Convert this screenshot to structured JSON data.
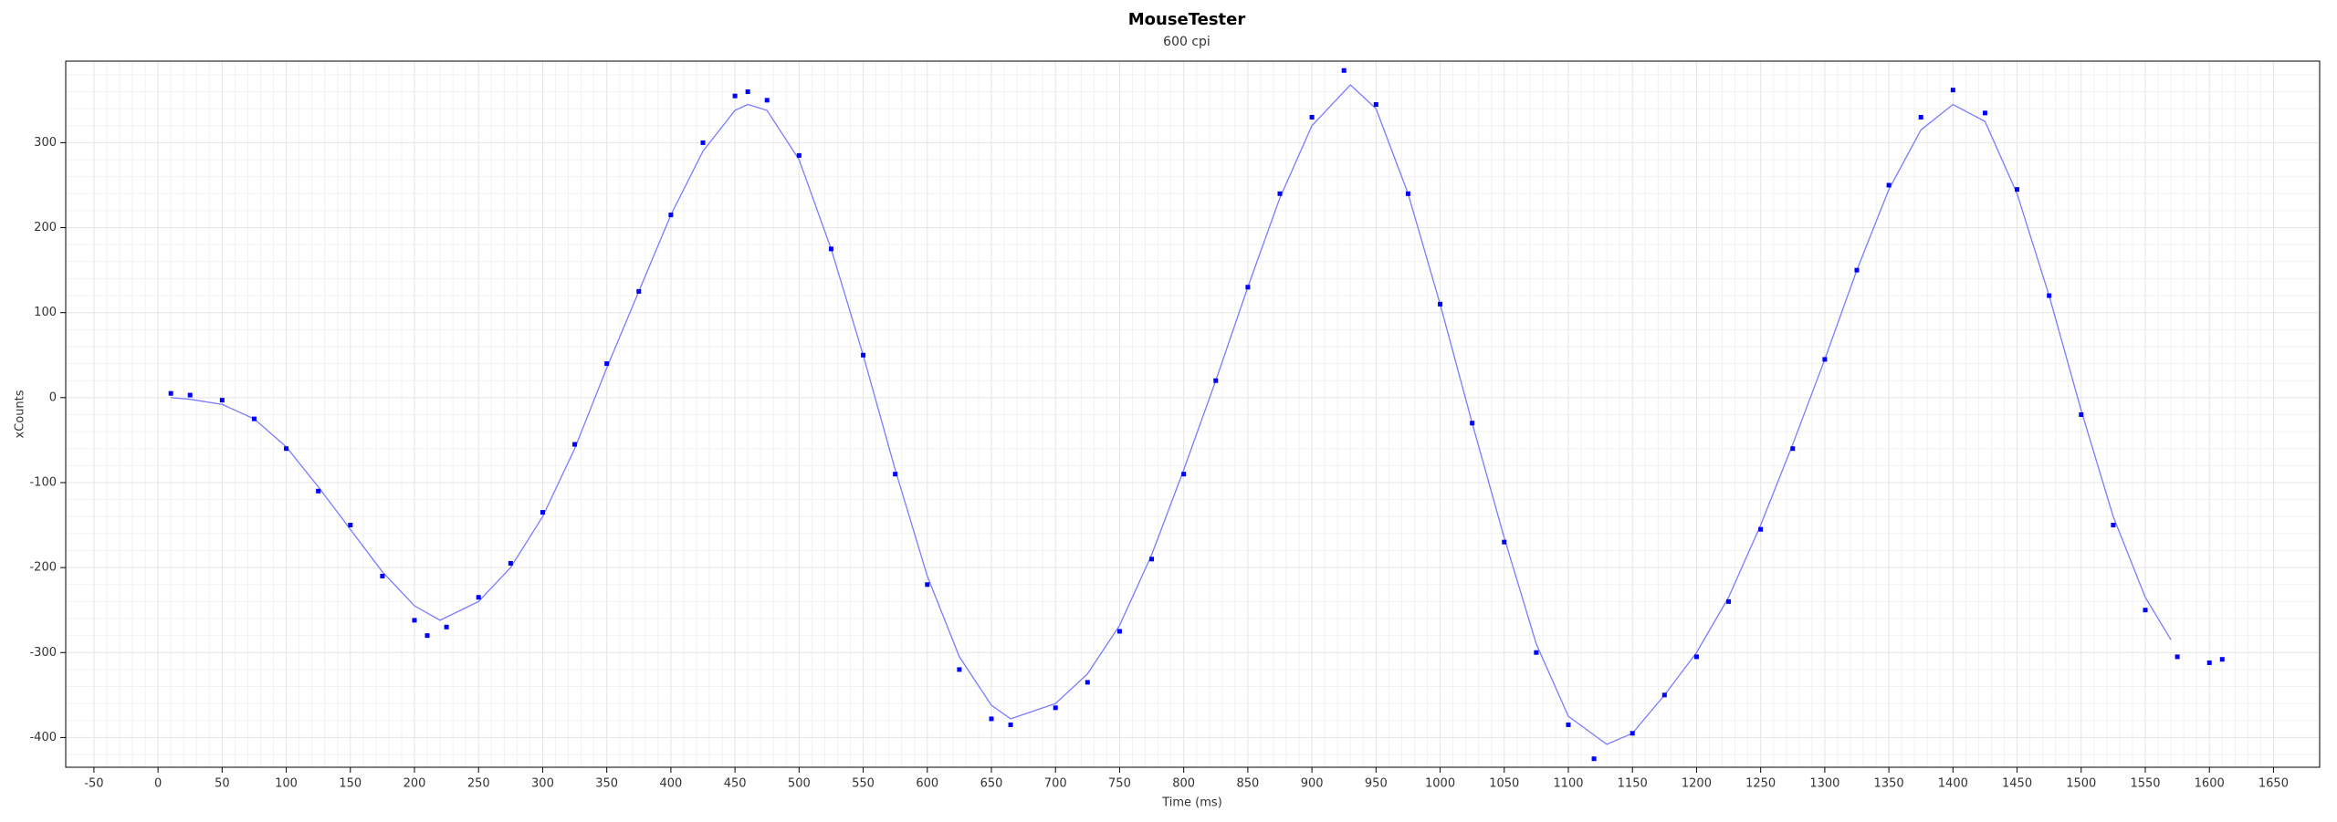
{
  "chart_data": {
    "type": "scatter",
    "title": "MouseTester",
    "subtitle": "600 cpi",
    "x_label": "Time (ms)",
    "y_label": "xCounts",
    "x": [
      10,
      25,
      50,
      75,
      100,
      125,
      150,
      175,
      200,
      210,
      225,
      250,
      275,
      300,
      325,
      350,
      375,
      400,
      425,
      450,
      460,
      475,
      500,
      525,
      550,
      575,
      600,
      625,
      650,
      665,
      700,
      725,
      750,
      775,
      800,
      825,
      850,
      875,
      900,
      925,
      950,
      975,
      1000,
      1025,
      1050,
      1075,
      1100,
      1120,
      1150,
      1175,
      1200,
      1225,
      1250,
      1275,
      1300,
      1325,
      1350,
      1375,
      1400,
      1425,
      1450,
      1475,
      1500,
      1525,
      1550,
      1575,
      1600,
      1610
    ],
    "series": [
      {
        "color": "#0000ff",
        "values": [
          5,
          3,
          -3,
          -25,
          -60,
          -110,
          -150,
          -210,
          -262,
          -280,
          -270,
          -235,
          -195,
          -135,
          -55,
          40,
          125,
          215,
          300,
          355,
          360,
          350,
          285,
          175,
          50,
          -90,
          -220,
          -320,
          -378,
          -385,
          -365,
          -335,
          -275,
          -190,
          -90,
          20,
          130,
          240,
          330,
          385,
          345,
          240,
          110,
          -30,
          -170,
          -300,
          -385,
          -425,
          -395,
          -350,
          -305,
          -240,
          -155,
          -60,
          45,
          150,
          250,
          330,
          362,
          335,
          245,
          120,
          -20,
          -150,
          -250,
          -305,
          -312,
          -308
        ]
      }
    ],
    "fit": {
      "type": "line",
      "color": "#7b7bff",
      "x": [
        10,
        25,
        50,
        75,
        100,
        125,
        150,
        175,
        200,
        220,
        250,
        275,
        300,
        325,
        350,
        375,
        400,
        425,
        450,
        460,
        475,
        500,
        525,
        550,
        575,
        600,
        625,
        650,
        665,
        700,
        725,
        750,
        775,
        800,
        825,
        850,
        875,
        900,
        930,
        950,
        975,
        1000,
        1025,
        1050,
        1075,
        1100,
        1130,
        1150,
        1175,
        1200,
        1225,
        1250,
        1275,
        1300,
        1325,
        1350,
        1375,
        1400,
        1425,
        1450,
        1475,
        1500,
        1525,
        1550,
        1570
      ],
      "values": [
        0,
        -2,
        -8,
        -25,
        -58,
        -105,
        -155,
        -205,
        -245,
        -262,
        -240,
        -200,
        -140,
        -60,
        35,
        125,
        215,
        290,
        338,
        345,
        338,
        280,
        175,
        50,
        -85,
        -210,
        -305,
        -362,
        -378,
        -360,
        -325,
        -268,
        -185,
        -85,
        20,
        130,
        235,
        320,
        368,
        340,
        240,
        110,
        -30,
        -165,
        -290,
        -375,
        -408,
        -395,
        -350,
        -300,
        -235,
        -150,
        -55,
        45,
        150,
        245,
        315,
        345,
        325,
        240,
        120,
        -15,
        -140,
        -235,
        -285
      ]
    },
    "xlim": [
      -72,
      1686
    ],
    "ylim": [
      -435,
      396
    ],
    "xticks": [
      -50,
      0,
      50,
      100,
      150,
      200,
      250,
      300,
      350,
      400,
      450,
      500,
      550,
      600,
      650,
      700,
      750,
      800,
      850,
      900,
      950,
      1000,
      1050,
      1100,
      1150,
      1200,
      1250,
      1300,
      1350,
      1400,
      1450,
      1500,
      1550,
      1600,
      1650
    ],
    "yticks": [
      -400,
      -300,
      -200,
      -100,
      0,
      100,
      200,
      300
    ],
    "grid": true
  }
}
